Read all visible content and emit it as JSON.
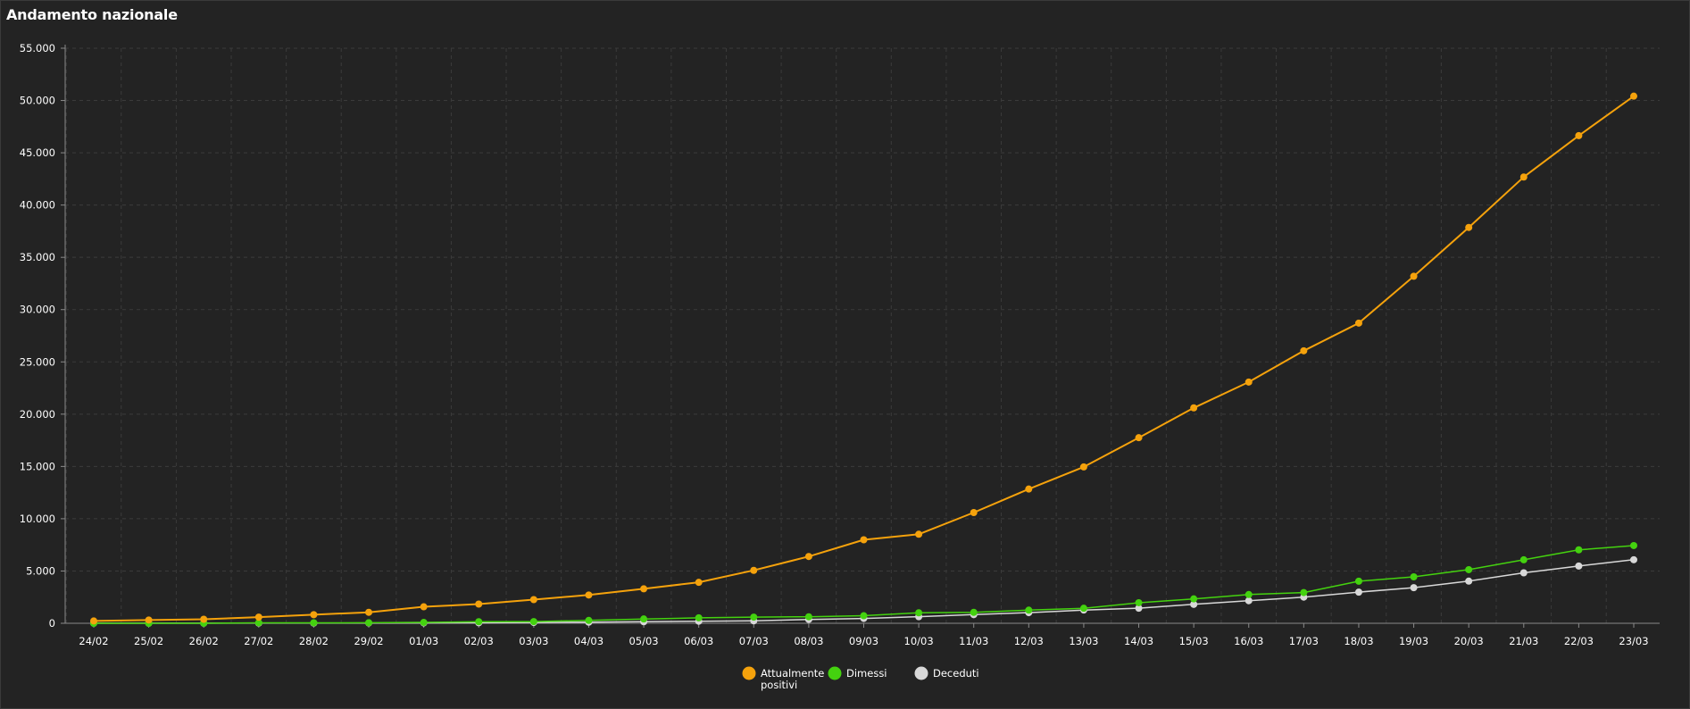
{
  "panel": {
    "title": "Andamento nazionale"
  },
  "chart_data": {
    "type": "line",
    "title": "Andamento nazionale",
    "xlabel": "",
    "ylabel": "",
    "ylim": [
      0,
      55000
    ],
    "y_ticks": [
      0,
      5000,
      10000,
      15000,
      20000,
      25000,
      30000,
      35000,
      40000,
      45000,
      50000,
      55000
    ],
    "y_tick_labels": [
      "0",
      "5.000",
      "10.000",
      "15.000",
      "20.000",
      "25.000",
      "30.000",
      "35.000",
      "40.000",
      "45.000",
      "50.000",
      "55.000"
    ],
    "grid": true,
    "legend_position": "bottom-center",
    "categories": [
      "24/02",
      "25/02",
      "26/02",
      "27/02",
      "28/02",
      "29/02",
      "01/03",
      "02/03",
      "03/03",
      "04/03",
      "05/03",
      "06/03",
      "07/03",
      "08/03",
      "09/03",
      "10/03",
      "11/03",
      "12/03",
      "13/03",
      "14/03",
      "15/03",
      "16/03",
      "17/03",
      "18/03",
      "19/03",
      "20/03",
      "21/03",
      "22/03",
      "23/03"
    ],
    "series": [
      {
        "name": "Attualmente positivi",
        "legend_lines": [
          "Attualmente",
          "positivi"
        ],
        "color": "#f5a20c",
        "values": [
          221,
          311,
          385,
          588,
          821,
          1049,
          1577,
          1835,
          2263,
          2706,
          3296,
          3916,
          5061,
          6387,
          7985,
          8514,
          10590,
          12839,
          14955,
          17750,
          20603,
          23073,
          26062,
          28710,
          33190,
          37860,
          42681,
          46638,
          50418
        ]
      },
      {
        "name": "Dimessi",
        "legend_lines": [
          "Dimessi"
        ],
        "color": "#44d20f",
        "values": [
          1,
          1,
          3,
          45,
          46,
          50,
          83,
          149,
          160,
          276,
          414,
          523,
          589,
          622,
          724,
          1004,
          1045,
          1258,
          1439,
          1966,
          2335,
          2749,
          2941,
          4025,
          4440,
          5129,
          6072,
          7024,
          7432
        ]
      },
      {
        "name": "Deceduti",
        "legend_lines": [
          "Deceduti"
        ],
        "color": "#d8d8d8",
        "values": [
          7,
          10,
          12,
          17,
          21,
          29,
          34,
          52,
          79,
          107,
          148,
          197,
          233,
          366,
          463,
          631,
          827,
          1016,
          1266,
          1441,
          1809,
          2158,
          2503,
          2978,
          3405,
          4032,
          4825,
          5476,
          6077
        ]
      }
    ]
  }
}
